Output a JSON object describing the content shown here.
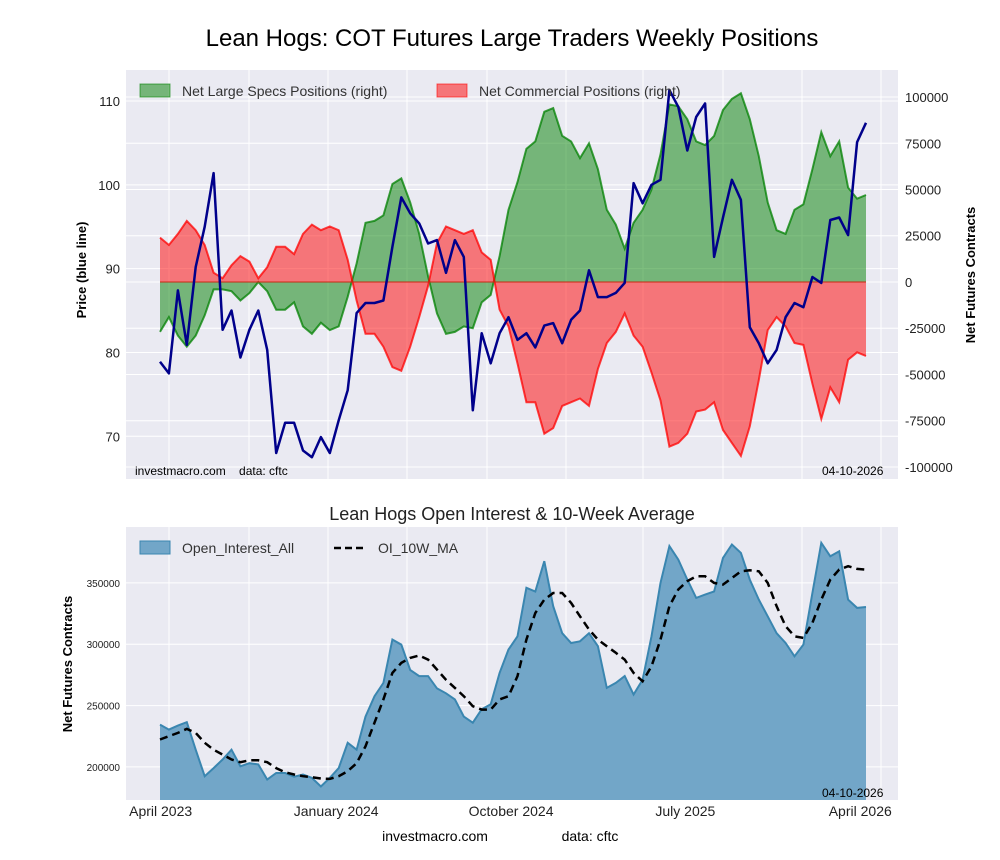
{
  "title": "Lean Hogs: COT Futures Large Traders Weekly Positions",
  "footer": {
    "site": "investmacro.com",
    "source": "data: cftc"
  },
  "chart_data": [
    {
      "type": "area",
      "title": "Lean Hogs: COT Futures Large Traders Weekly Positions",
      "left_ylabel": "Price (blue line)",
      "right_ylabel": "Net Futures Contracts",
      "left_ylim": [
        64.9,
        113.7
      ],
      "right_ylim": [
        -106500,
        114600
      ],
      "left_ticks": [
        70,
        80,
        90,
        100,
        110
      ],
      "right_ticks": [
        100000,
        75000,
        50000,
        25000,
        0,
        -25000,
        -50000,
        -75000,
        -100000
      ],
      "grid": true,
      "legend_placement": "top-left",
      "watermark": "investmacro.com    data: cftc",
      "date_label": "04-10-2026",
      "colors": {
        "specs": "#008000",
        "commercial": "#ff0000",
        "price": "#00008b",
        "background": "#eaeaf2"
      },
      "x_dates": [
        "2023-03-31",
        "2023-04-14",
        "2023-04-28",
        "2023-05-12",
        "2023-05-26",
        "2023-06-09",
        "2023-06-23",
        "2023-07-07",
        "2023-07-21",
        "2023-08-04",
        "2023-08-18",
        "2023-09-01",
        "2023-09-15",
        "2023-09-29",
        "2023-10-13",
        "2023-10-27",
        "2023-11-10",
        "2023-11-24",
        "2023-12-08",
        "2023-12-22",
        "2024-01-05",
        "2024-01-19",
        "2024-02-02",
        "2024-02-16",
        "2024-03-01",
        "2024-03-15",
        "2024-03-29",
        "2024-04-12",
        "2024-04-26",
        "2024-05-10",
        "2024-05-24",
        "2024-06-07",
        "2024-06-21",
        "2024-07-05",
        "2024-07-19",
        "2024-08-02",
        "2024-08-16",
        "2024-08-30",
        "2024-09-13",
        "2024-09-27",
        "2024-10-11",
        "2024-10-25",
        "2024-11-08",
        "2024-11-22",
        "2024-12-06",
        "2024-12-20",
        "2025-01-03",
        "2025-01-17",
        "2025-01-31",
        "2025-02-14",
        "2025-02-28",
        "2025-03-14",
        "2025-03-28",
        "2025-04-11",
        "2025-04-25",
        "2025-05-09",
        "2025-05-23",
        "2025-06-06",
        "2025-06-20",
        "2025-07-04",
        "2025-07-18",
        "2025-08-01",
        "2025-08-15",
        "2025-08-29",
        "2025-09-12",
        "2025-09-26",
        "2025-10-10",
        "2025-10-24",
        "2025-11-07",
        "2025-11-21",
        "2025-12-05",
        "2025-12-19",
        "2026-01-02",
        "2026-01-16",
        "2026-01-30",
        "2026-02-13",
        "2026-02-27",
        "2026-03-13",
        "2026-03-27",
        "2026-04-10"
      ],
      "series": [
        {
          "name": "Net Large Specs Positions (right)",
          "axis": "right",
          "kind": "fill",
          "values": [
            -27000,
            -19000,
            -29000,
            -35000,
            -29000,
            -18000,
            -4000,
            -4000,
            -5000,
            -10000,
            -6000,
            0,
            -5000,
            -15000,
            -15000,
            -11000,
            -24000,
            -28000,
            -22000,
            -26000,
            -24000,
            -8000,
            10000,
            32000,
            33000,
            36000,
            53000,
            56000,
            43000,
            26000,
            3000,
            -17000,
            -28000,
            -27000,
            -24000,
            -25000,
            -11000,
            -7000,
            14000,
            39000,
            54000,
            72000,
            76000,
            92000,
            94000,
            79000,
            76000,
            67000,
            75000,
            61000,
            39000,
            31000,
            18000,
            32000,
            39000,
            50000,
            69000,
            96000,
            95000,
            88000,
            76000,
            74000,
            79000,
            93000,
            99000,
            102000,
            88000,
            68000,
            43000,
            28000,
            26000,
            39000,
            42000,
            61000,
            81000,
            68000,
            76000,
            51000,
            45000,
            47000
          ]
        },
        {
          "name": "Net Commercial Positions (right)",
          "axis": "right",
          "kind": "fill",
          "values": [
            24000,
            20000,
            26000,
            33000,
            28000,
            20000,
            5000,
            2000,
            9000,
            14000,
            11000,
            2000,
            8000,
            19000,
            19000,
            15000,
            26000,
            31000,
            28000,
            30000,
            28000,
            12000,
            -10000,
            -28000,
            -28000,
            -35000,
            -46000,
            -48000,
            -35000,
            -19000,
            -2000,
            21000,
            30000,
            28000,
            26000,
            28000,
            16000,
            12000,
            -15000,
            -24000,
            -44000,
            -65000,
            -65000,
            -82000,
            -79000,
            -67000,
            -65000,
            -63000,
            -67000,
            -47000,
            -33000,
            -27000,
            -17000,
            -29000,
            -35000,
            -49000,
            -64000,
            -89000,
            -87000,
            -82000,
            -70000,
            -69000,
            -65000,
            -80000,
            -87000,
            -94000,
            -78000,
            -53000,
            -26000,
            -19000,
            -24000,
            -33000,
            -34000,
            -55000,
            -74000,
            -57000,
            -65000,
            -42000,
            -38000,
            -40000
          ]
        },
        {
          "axis": "left",
          "kind": "line",
          "values": [
            78.9,
            77.5,
            87.4,
            80.9,
            90.2,
            95.0,
            101.4,
            82.7,
            85.0,
            79.4,
            82.7,
            85.0,
            80.3,
            68.0,
            71.6,
            71.6,
            68.3,
            67.5,
            69.9,
            68.0,
            71.9,
            75.5,
            84.7,
            85.9,
            85.9,
            86.2,
            92.6,
            98.5,
            96.6,
            95.4,
            93.0,
            93.4,
            89.5,
            93.4,
            91.4,
            73.1,
            82.3,
            78.7,
            82.3,
            84.2,
            81.5,
            82.3,
            80.6,
            83.2,
            83.5,
            81.1,
            83.9,
            85.0,
            89.8,
            86.6,
            86.6,
            87.1,
            88.3,
            100.2,
            97.8,
            100.0,
            100.6,
            111.3,
            109.3,
            104.1,
            108.1,
            109.7,
            91.4,
            96.1,
            100.6,
            98.2,
            83.0,
            81.1,
            78.7,
            80.3,
            84.2,
            85.9,
            85.4,
            89.0,
            88.3,
            95.8,
            96.1,
            94.0,
            105.1,
            107.4
          ]
        }
      ]
    },
    {
      "type": "area",
      "title": "Lean Hogs Open Interest & 10-Week Average",
      "ylabel": "Net Futures Contracts",
      "ylim": [
        173000,
        395600
      ],
      "yticks": [
        350000,
        300000,
        250000,
        200000
      ],
      "grid": true,
      "legend_placement": "top-left",
      "date_label": "04-10-2026",
      "colors": {
        "open_interest": "#72a6c8",
        "open_interest_edge": "#3a86b0",
        "ma": "#000000"
      },
      "x_tick_labels": [
        {
          "label": "April 2023",
          "date": "2023-04-01"
        },
        {
          "label": "January 2024",
          "date": "2024-01-01"
        },
        {
          "label": "October 2024",
          "date": "2024-10-01"
        },
        {
          "label": "July 2025",
          "date": "2025-07-01"
        },
        {
          "label": "April 2026",
          "date": "2026-04-01"
        }
      ],
      "series": [
        {
          "name": "Open_Interest_All",
          "kind": "fill",
          "values": [
            234500,
            230400,
            233700,
            236400,
            214000,
            192400,
            199000,
            206000,
            214000,
            200500,
            203000,
            202000,
            189700,
            195000,
            195000,
            192000,
            193800,
            191000,
            184000,
            191000,
            199000,
            219600,
            214000,
            241000,
            257600,
            268500,
            303800,
            299700,
            279000,
            274000,
            274000,
            264000,
            260000,
            255000,
            241000,
            236000,
            247000,
            251000,
            276600,
            295700,
            306500,
            346000,
            343000,
            367700,
            331000,
            309000,
            301000,
            302400,
            309000,
            298400,
            264400,
            268500,
            274000,
            259000,
            271000,
            306500,
            350000,
            380000,
            369000,
            352700,
            337800,
            340500,
            343000,
            370400,
            381300,
            374500,
            352700,
            336400,
            322800,
            309000,
            301000,
            290200,
            299700,
            341800,
            382600,
            371700,
            375800,
            336400,
            329600,
            330400
          ]
        },
        {
          "name": "OI_10W_MA",
          "kind": "dashed-line",
          "values": [
            222300,
            225000,
            227700,
            231000,
            227700,
            219600,
            214000,
            210000,
            206000,
            203800,
            205400,
            205400,
            203800,
            199000,
            195600,
            193800,
            192400,
            191600,
            190500,
            190200,
            192400,
            196500,
            203000,
            216800,
            236000,
            255000,
            276600,
            284800,
            288900,
            290800,
            287500,
            279300,
            271000,
            264400,
            257600,
            249500,
            246700,
            246700,
            255000,
            257600,
            274000,
            303800,
            325500,
            336400,
            341800,
            341800,
            333700,
            322800,
            312000,
            303800,
            298400,
            293000,
            287500,
            276600,
            269800,
            282000,
            303800,
            331000,
            344600,
            351400,
            355400,
            355400,
            350000,
            348600,
            354000,
            359500,
            360300,
            359500,
            350000,
            331000,
            314700,
            306500,
            305200,
            317400,
            336400,
            352700,
            360900,
            363600,
            361400,
            360900
          ]
        }
      ]
    }
  ]
}
